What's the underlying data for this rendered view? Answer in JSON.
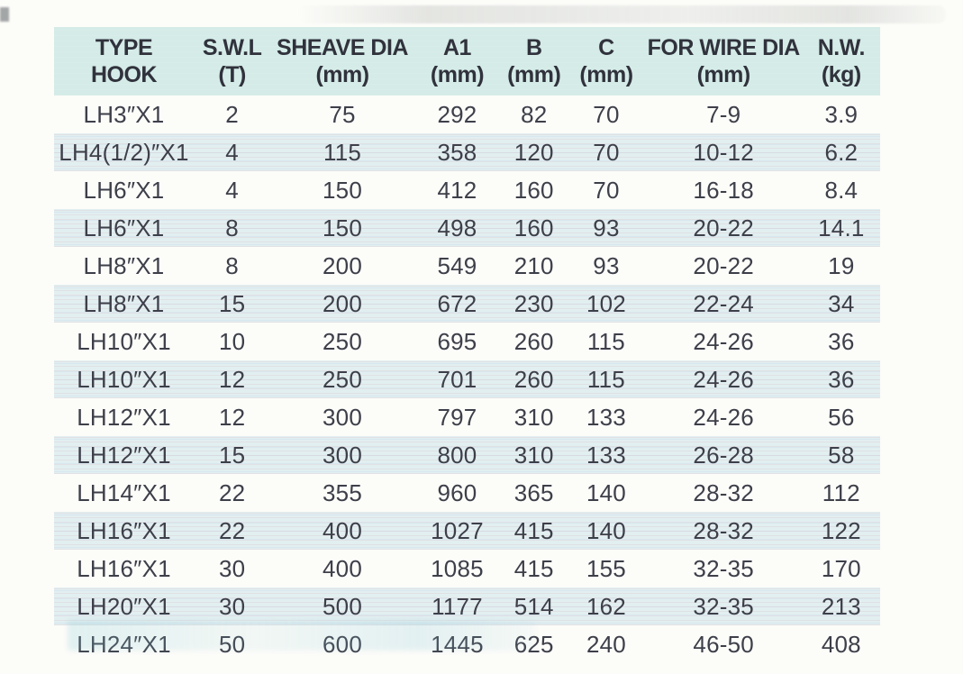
{
  "table": {
    "columns": [
      {
        "label": "TYPE",
        "unit": "HOOK"
      },
      {
        "label": "S.W.L",
        "unit": "(T)"
      },
      {
        "label": "SHEAVE DIA",
        "unit": "(mm)"
      },
      {
        "label": "A1",
        "unit": "(mm)"
      },
      {
        "label": "B",
        "unit": "(mm)"
      },
      {
        "label": "C",
        "unit": "(mm)"
      },
      {
        "label": "FOR WIRE DIA",
        "unit": "(mm)"
      },
      {
        "label": "N.W.",
        "unit": "(kg)"
      }
    ],
    "rows": [
      [
        "LH3″X1",
        "2",
        "75",
        "292",
        "82",
        "70",
        "7-9",
        "3.9"
      ],
      [
        "LH4(1/2)″X1",
        "4",
        "115",
        "358",
        "120",
        "70",
        "10-12",
        "6.2"
      ],
      [
        "LH6″X1",
        "4",
        "150",
        "412",
        "160",
        "70",
        "16-18",
        "8.4"
      ],
      [
        "LH6″X1",
        "8",
        "150",
        "498",
        "160",
        "93",
        "20-22",
        "14.1"
      ],
      [
        "LH8″X1",
        "8",
        "200",
        "549",
        "210",
        "93",
        "20-22",
        "19"
      ],
      [
        "LH8″X1",
        "15",
        "200",
        "672",
        "230",
        "102",
        "22-24",
        "34"
      ],
      [
        "LH10″X1",
        "10",
        "250",
        "695",
        "260",
        "115",
        "24-26",
        "36"
      ],
      [
        "LH10″X1",
        "12",
        "250",
        "701",
        "260",
        "115",
        "24-26",
        "36"
      ],
      [
        "LH12″X1",
        "12",
        "300",
        "797",
        "310",
        "133",
        "24-26",
        "56"
      ],
      [
        "LH12″X1",
        "15",
        "300",
        "800",
        "310",
        "133",
        "26-28",
        "58"
      ],
      [
        "LH14″X1",
        "22",
        "355",
        "960",
        "365",
        "140",
        "28-32",
        "112"
      ],
      [
        "LH16″X1",
        "22",
        "400",
        "1027",
        "415",
        "140",
        "28-32",
        "122"
      ],
      [
        "LH16″X1",
        "30",
        "400",
        "1085",
        "415",
        "155",
        "32-35",
        "170"
      ],
      [
        "LH20″X1",
        "30",
        "500",
        "1177",
        "514",
        "162",
        "32-35",
        "213"
      ],
      [
        "LH24″X1",
        "50",
        "600",
        "1445",
        "625",
        "240",
        "46-50",
        "408"
      ]
    ]
  },
  "colors": {
    "page_bg": "#fcfcf9",
    "header_band": "#d4ebe7",
    "row_tint": "#e2eff1",
    "ink": "#383a44"
  }
}
